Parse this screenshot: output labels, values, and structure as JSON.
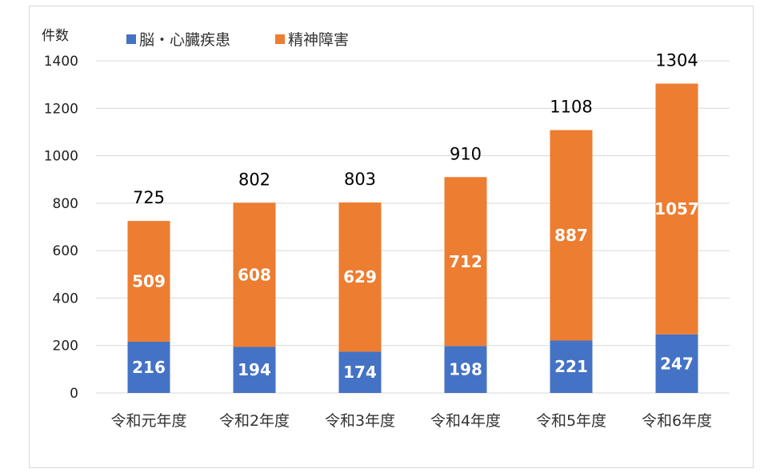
{
  "chart_data": {
    "type": "bar",
    "stacked": true,
    "unit_label": "件数",
    "categories": [
      "令和元年度",
      "令和2年度",
      "令和3年度",
      "令和4年度",
      "令和5年度",
      "令和6年度"
    ],
    "series": [
      {
        "name": "脳・心臓疾患",
        "values": [
          216,
          194,
          174,
          198,
          221,
          247
        ],
        "color": "#4472c4"
      },
      {
        "name": "精神障害",
        "values": [
          509,
          608,
          629,
          712,
          887,
          1057
        ],
        "color": "#ed7d31"
      }
    ],
    "totals": [
      725,
      802,
      803,
      910,
      1108,
      1304
    ],
    "ylim": [
      0,
      1400
    ],
    "yticks": [
      0,
      200,
      400,
      600,
      800,
      1000,
      1200,
      1400
    ],
    "grid": true,
    "legend_position": "top-left"
  }
}
